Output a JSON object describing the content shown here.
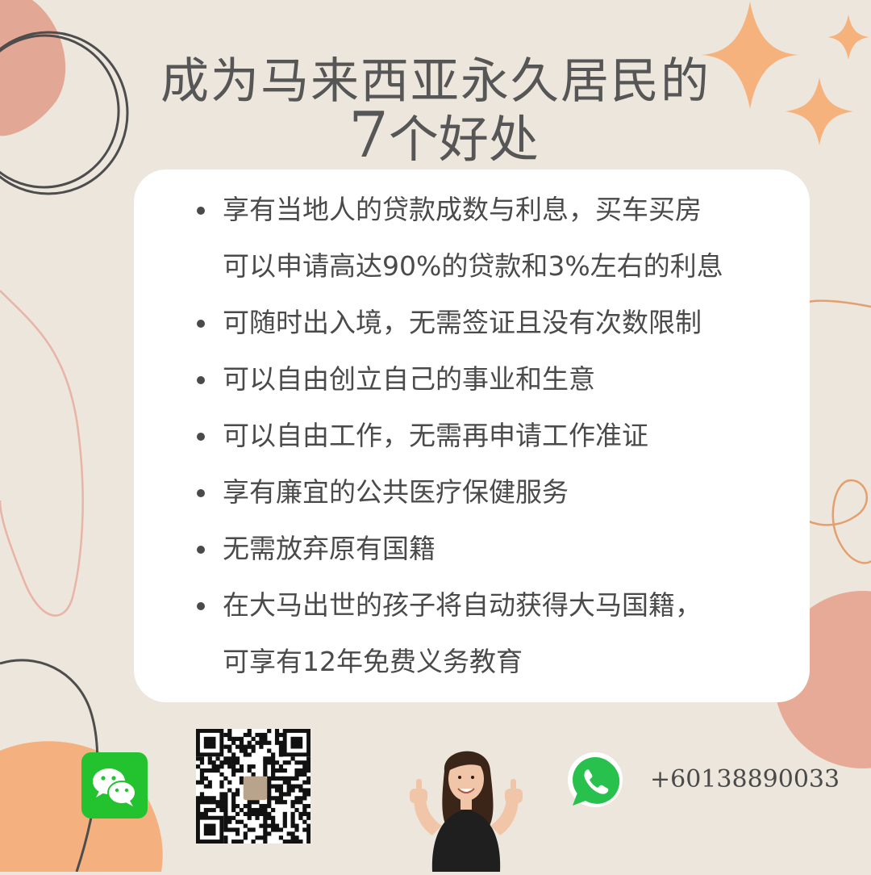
{
  "title": {
    "line1": "成为马来西亚永久居民的",
    "number": "7",
    "line2_rest": "个好处"
  },
  "benefits": [
    {
      "lines": [
        "享有当地人的贷款成数与利息，买车买房",
        "可以申请高达90%的贷款和3%左右的利息"
      ]
    },
    {
      "lines": [
        "可随时出入境，无需签证且没有次数限制"
      ]
    },
    {
      "lines": [
        "可以自由创立自己的事业和生意"
      ]
    },
    {
      "lines": [
        "可以自由工作，无需再申请工作准证"
      ]
    },
    {
      "lines": [
        "享有廉宜的公共医疗保健服务"
      ]
    },
    {
      "lines": [
        "无需放弃原有国籍"
      ]
    },
    {
      "lines": [
        "在大马出世的孩子将自动获得大马国籍，",
        "可享有12年免费义务教育"
      ]
    }
  ],
  "contact": {
    "wechat_icon": "wechat-icon",
    "qr_icon": "qr-code",
    "whatsapp_icon": "whatsapp-icon",
    "phone": "+60138890033"
  },
  "colors": {
    "background": "#ece6dc",
    "text": "#565656",
    "card": "#ffffff",
    "peach": "#f5b07f",
    "salmon": "#e7aa97",
    "star": "#f6b27d",
    "wechat": "#22c32e",
    "whatsapp": "#29c14d"
  }
}
